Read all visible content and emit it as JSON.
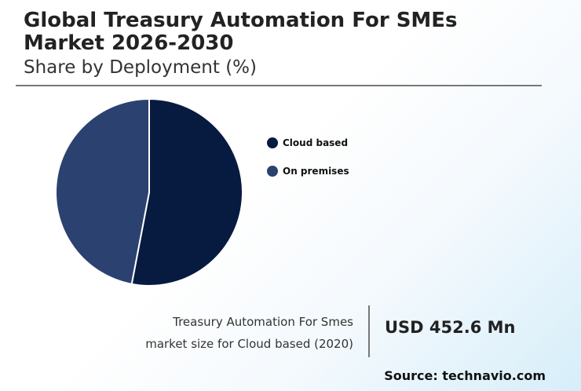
{
  "header": {
    "title": "Global Treasury Automation For SMEs\nMarket 2026-2030",
    "subtitle": "Share by Deployment (%)"
  },
  "chart_data": {
    "type": "pie",
    "categories": [
      "Cloud based",
      "On premises"
    ],
    "values": [
      53,
      47
    ],
    "colors": [
      "#071a40",
      "#2b4170"
    ],
    "legend_position": "right"
  },
  "legend": {
    "items": [
      {
        "label": "Cloud based",
        "color": "#071a40"
      },
      {
        "label": "On premises",
        "color": "#2b4170"
      }
    ]
  },
  "footer": {
    "caption_line1": "Treasury Automation For Smes",
    "caption_line2": "market size for Cloud based (2020)",
    "market_value": "USD 452.6 Mn",
    "source": "Source: technavio.com"
  }
}
